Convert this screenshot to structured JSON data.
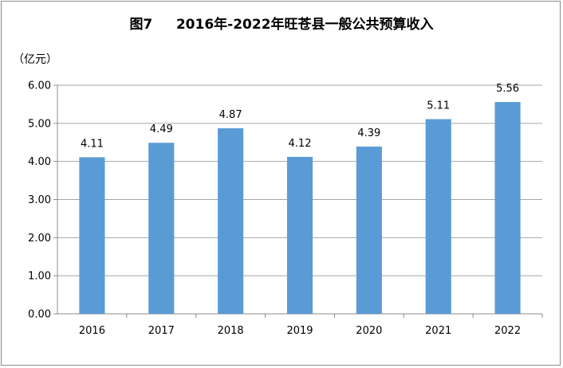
{
  "chart_data": {
    "type": "bar",
    "title": "图7     2016年-2022年旺苍县一般公共预算收入",
    "unit_label": "（亿元）",
    "categories": [
      "2016",
      "2017",
      "2018",
      "2019",
      "2020",
      "2021",
      "2022"
    ],
    "values": [
      4.11,
      4.49,
      4.87,
      4.12,
      4.39,
      5.11,
      5.56
    ],
    "data_labels": [
      "4.11",
      "4.49",
      "4.87",
      "4.12",
      "4.39",
      "5.11",
      "5.56"
    ],
    "y_ticks": [
      "0.00",
      "1.00",
      "2.00",
      "3.00",
      "4.00",
      "5.00",
      "6.00"
    ],
    "ylim": [
      0,
      6
    ],
    "grid": true,
    "bar_color": "#5b9bd5",
    "grid_color": "#a6a6a6"
  }
}
